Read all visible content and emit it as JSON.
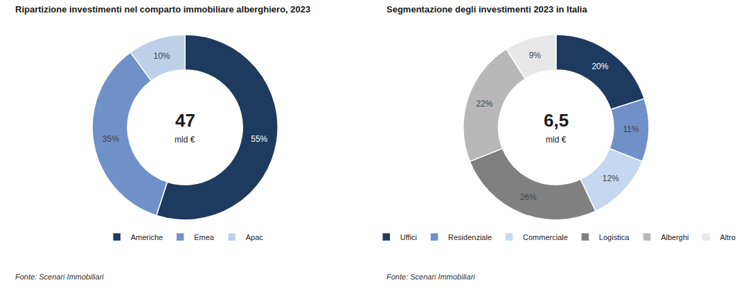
{
  "chart_data": [
    {
      "type": "donut",
      "title": "Ripartizione investimenti nel comparto immobiliare alberghiero, 2023",
      "categories": [
        "Americhe",
        "Emea",
        "Apac"
      ],
      "values": [
        55,
        35,
        10
      ],
      "value_labels": [
        "55%",
        "35%",
        "10%"
      ],
      "colors": [
        "#1e3a5f",
        "#7090c8",
        "#bdd0e8"
      ],
      "data_labels": true,
      "legend": "bottom",
      "annotations": [
        "47",
        "mld €",
        "Fonte: Scenari Immobiliari"
      ]
    },
    {
      "type": "donut",
      "title": "Segmentazione degli investimenti 2023 in Italia",
      "categories": [
        "Uffici",
        "Residenziale",
        "Commerciale",
        "Logistica",
        "Alberghi",
        "Altro"
      ],
      "values": [
        20,
        11,
        12,
        26,
        22,
        9
      ],
      "value_labels": [
        "20%",
        "11%",
        "12%",
        "26%",
        "22%",
        "9%"
      ],
      "colors": [
        "#1e3a5f",
        "#7090c8",
        "#c5d8f0",
        "#808080",
        "#b8b8b8",
        "#e8e8e8"
      ],
      "data_labels": true,
      "legend": "bottom",
      "annotations": [
        "6,5",
        "mld €",
        "Fonte: Scenari Immobiliari"
      ]
    }
  ]
}
